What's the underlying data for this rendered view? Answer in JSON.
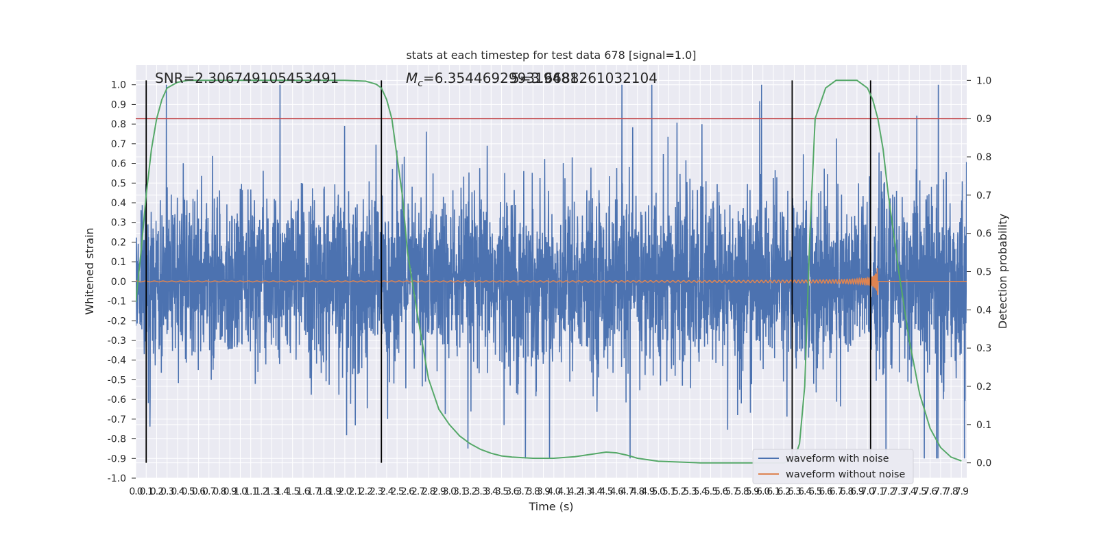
{
  "chart_data": {
    "type": "line",
    "title": "stats at each timestep for test data 678 [signal=1.0]",
    "xlabel": "Time (s)",
    "ylabel": "Whitened strain",
    "y2label": "Detection probability",
    "xlim": [
      0.0,
      7.95
    ],
    "ylim": [
      -1.0,
      1.1
    ],
    "y2lim": [
      -0.04,
      1.04
    ],
    "grid": true,
    "legend_position": "lower-right",
    "x_tick_labels": [
      "0.0",
      "0.1",
      "0.2",
      "0.3",
      "0.4",
      "0.5",
      "0.6",
      "0.7",
      "0.8",
      "0.9",
      "1.0",
      "1.1",
      "1.2",
      "1.3",
      "1.4",
      "1.5",
      "1.6",
      "1.7",
      "1.8",
      "1.9",
      "2.0",
      "2.1",
      "2.2",
      "2.3",
      "2.4",
      "2.5",
      "2.6",
      "2.7",
      "2.8",
      "2.9",
      "3.0",
      "3.1",
      "3.2",
      "3.3",
      "3.4",
      "3.5",
      "3.6",
      "3.7",
      "3.8",
      "3.9",
      "4.0",
      "4.1",
      "4.2",
      "4.3",
      "4.4",
      "4.5",
      "4.6",
      "4.7",
      "4.8",
      "4.9",
      "5.0",
      "5.1",
      "5.2",
      "5.3",
      "5.4",
      "5.5",
      "5.6",
      "5.7",
      "5.8",
      "5.9",
      "6.0",
      "6.1",
      "6.2",
      "6.3",
      "6.4",
      "6.5",
      "6.6",
      "6.7",
      "6.8",
      "6.9",
      "7.0",
      "7.1",
      "7.2",
      "7.3",
      "7.4",
      "7.5",
      "7.6",
      "7.7",
      "7.8",
      "7.9"
    ],
    "y_tick_labels": [
      "1.0",
      "0.9",
      "0.8",
      "0.7",
      "0.6",
      "0.5",
      "0.4",
      "0.3",
      "0.2",
      "0.1",
      "0.0",
      "-0.1",
      "-0.2",
      "-0.3",
      "-0.4",
      "-0.5",
      "-0.6",
      "-0.7",
      "-0.8",
      "-0.9",
      "-1.0"
    ],
    "y_tick_values": [
      1.0,
      0.9,
      0.8,
      0.7,
      0.6,
      0.5,
      0.4,
      0.3,
      0.2,
      0.1,
      0.0,
      -0.1,
      -0.2,
      -0.3,
      -0.4,
      -0.5,
      -0.6,
      -0.7,
      -0.8,
      -0.9,
      -1.0
    ],
    "y2_tick_labels": [
      "1.0",
      "0.9",
      "0.8",
      "0.7",
      "0.6",
      "0.5",
      "0.4",
      "0.3",
      "0.2",
      "0.1",
      "0.0"
    ],
    "y2_tick_values": [
      1.0,
      0.9,
      0.8,
      0.7,
      0.6,
      0.5,
      0.4,
      0.3,
      0.2,
      0.1,
      0.0
    ],
    "annotations": {
      "snr_text": "SNR=2.306749105453491",
      "mc_prefix": "M",
      "mc_sub": "c",
      "mc_value": "=6.354469299319481",
      "overlap_text": "5=3.6688261032104"
    },
    "series": [
      {
        "name": "waveform with noise",
        "color": "#4c72b0",
        "samples": 4096,
        "envelope": 0.45,
        "peak_max": 1.0,
        "peak_min": -0.9
      },
      {
        "name": "waveform without noise",
        "color": "#dd8452",
        "chirp_end": 7.1,
        "amplitude_max": 0.07
      },
      {
        "name": "detection probability",
        "color": "#55a868",
        "x": [
          0.0,
          0.05,
          0.1,
          0.15,
          0.2,
          0.25,
          0.3,
          0.4,
          0.5,
          0.6,
          0.8,
          1.0,
          1.5,
          2.0,
          2.2,
          2.3,
          2.35,
          2.4,
          2.45,
          2.5,
          2.55,
          2.6,
          2.7,
          2.8,
          2.9,
          3.0,
          3.1,
          3.2,
          3.3,
          3.4,
          3.5,
          3.6,
          3.8,
          4.0,
          4.2,
          4.4,
          4.5,
          4.6,
          4.7,
          4.8,
          5.0,
          5.4,
          5.8,
          6.2,
          6.3,
          6.35,
          6.4,
          6.45,
          6.5,
          6.6,
          6.7,
          6.8,
          6.9,
          7.0,
          7.05,
          7.1,
          7.15,
          7.2,
          7.3,
          7.4,
          7.5,
          7.6,
          7.7,
          7.8,
          7.9
        ],
        "y": [
          0.42,
          0.55,
          0.7,
          0.82,
          0.9,
          0.95,
          0.98,
          0.995,
          1.0,
          1.0,
          1.0,
          1.0,
          1.0,
          1.0,
          0.998,
          0.99,
          0.98,
          0.95,
          0.9,
          0.8,
          0.7,
          0.55,
          0.38,
          0.22,
          0.14,
          0.1,
          0.07,
          0.05,
          0.035,
          0.025,
          0.018,
          0.015,
          0.012,
          0.012,
          0.016,
          0.024,
          0.028,
          0.026,
          0.02,
          0.012,
          0.004,
          0.0,
          0.0,
          0.0,
          0.01,
          0.05,
          0.2,
          0.6,
          0.9,
          0.98,
          1.0,
          1.0,
          1.0,
          0.98,
          0.95,
          0.9,
          0.82,
          0.7,
          0.5,
          0.32,
          0.18,
          0.09,
          0.04,
          0.015,
          0.005
        ]
      },
      {
        "name": "threshold",
        "color": "#c44e52",
        "y": 0.9
      }
    ],
    "vertical_markers": [
      0.1,
      2.35,
      6.28,
      7.03
    ]
  },
  "legend": {
    "noisy_label": "waveform with noise",
    "clean_label": "waveform without noise"
  }
}
